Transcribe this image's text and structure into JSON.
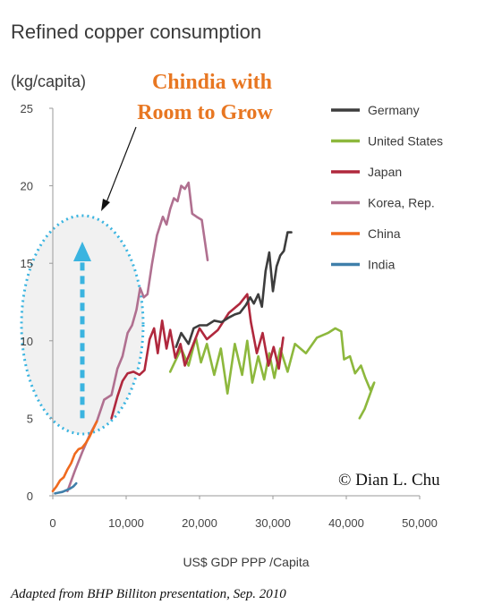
{
  "chart_data": {
    "type": "line",
    "title": "Refined copper consumption",
    "ylabel": "(kg/capita)",
    "xlabel": "US$ GDP PPP /Capita",
    "xlim": [
      0,
      50000
    ],
    "ylim": [
      0,
      25
    ],
    "xticks": [
      0,
      10000,
      20000,
      30000,
      40000,
      50000
    ],
    "xtick_labels": [
      "0",
      "10,000",
      "20,000",
      "30,000",
      "40,000",
      "50,000"
    ],
    "yticks": [
      0,
      5,
      10,
      15,
      20,
      25
    ],
    "ytick_labels": [
      "0",
      "5",
      "10",
      "15",
      "20",
      "25"
    ],
    "grid": false,
    "legend_position": "right",
    "series": [
      {
        "name": "Germany",
        "color": "#3d3d3d",
        "x": [
          16800,
          17500,
          18500,
          19200,
          20000,
          21000,
          22000,
          23000,
          24000,
          24800,
          25500,
          26300,
          26900,
          27400,
          28000,
          28500,
          29000,
          29500,
          30000,
          30500,
          31000,
          31500,
          32000,
          32500
        ],
        "y": [
          9.6,
          10.5,
          9.8,
          10.8,
          11.0,
          11.0,
          11.3,
          11.2,
          11.5,
          11.7,
          11.8,
          12.3,
          12.8,
          12.4,
          13.0,
          12.2,
          14.5,
          15.7,
          13.2,
          14.8,
          15.5,
          15.8,
          17.0,
          17.0
        ]
      },
      {
        "name": "United States",
        "color": "#8db83d",
        "x": [
          16000,
          17500,
          18500,
          19500,
          20200,
          21000,
          22000,
          22900,
          23800,
          24800,
          25800,
          26500,
          27200,
          28000,
          28800,
          29500,
          30200,
          31000,
          32000,
          33000,
          34500,
          36000,
          37500,
          38500,
          39300,
          39700,
          40500,
          41200,
          42000,
          42600,
          43300,
          43800,
          42500,
          41800
        ],
        "y": [
          8.0,
          9.5,
          8.4,
          10.2,
          8.6,
          9.8,
          7.8,
          9.5,
          6.6,
          9.8,
          7.8,
          10.0,
          7.3,
          9.0,
          7.5,
          9.2,
          7.6,
          9.5,
          8.0,
          9.8,
          9.2,
          10.2,
          10.5,
          10.8,
          10.6,
          8.8,
          9.0,
          7.9,
          8.4,
          7.6,
          6.8,
          7.3,
          5.6,
          5.0
        ]
      },
      {
        "name": "Japan",
        "color": "#b0283d",
        "x": [
          8000,
          8800,
          9500,
          10200,
          11000,
          11800,
          12500,
          13200,
          13800,
          14300,
          14900,
          15500,
          16000,
          16700,
          17400,
          18000,
          19000,
          20000,
          21000,
          22500,
          24000,
          25500,
          26500,
          27000,
          27800,
          28600,
          29400,
          30100,
          30800,
          31400
        ],
        "y": [
          5.0,
          6.4,
          7.4,
          7.9,
          8.0,
          7.8,
          8.1,
          10.1,
          10.8,
          9.2,
          11.3,
          9.5,
          10.7,
          8.9,
          9.8,
          8.4,
          9.6,
          10.8,
          10.1,
          10.7,
          11.8,
          12.4,
          13.0,
          11.2,
          9.2,
          10.5,
          8.4,
          9.6,
          8.2,
          10.2
        ]
      },
      {
        "name": "Korea, Rep.",
        "color": "#b07090",
        "x": [
          2000,
          3000,
          4000,
          5000,
          6000,
          7000,
          8000,
          8800,
          9500,
          10200,
          10800,
          11400,
          11900,
          12400,
          12900,
          13500,
          14200,
          15000,
          15500,
          16000,
          16500,
          17000,
          17500,
          18000,
          18500,
          19000,
          19600,
          20300,
          21100
        ],
        "y": [
          0.3,
          1.6,
          2.8,
          3.9,
          4.8,
          6.2,
          6.5,
          8.2,
          9.0,
          10.5,
          11.0,
          12.0,
          13.4,
          12.8,
          13.0,
          14.9,
          16.8,
          18.0,
          17.5,
          18.5,
          19.2,
          19.0,
          20.0,
          19.8,
          20.2,
          18.2,
          18.0,
          17.8,
          15.2
        ]
      },
      {
        "name": "China",
        "color": "#f06a1e",
        "x": [
          0,
          500,
          1000,
          1500,
          2000,
          2500,
          3000,
          3500,
          4000,
          4500,
          5000,
          5500,
          6000
        ],
        "y": [
          0.3,
          0.6,
          1.0,
          1.2,
          1.7,
          2.1,
          2.7,
          3.0,
          3.1,
          3.4,
          3.8,
          4.3,
          4.8
        ]
      },
      {
        "name": "India",
        "color": "#3f7faa",
        "x": [
          300,
          800,
          1300,
          1800,
          2300,
          2800,
          3200
        ],
        "y": [
          0.15,
          0.2,
          0.25,
          0.35,
          0.45,
          0.6,
          0.8
        ]
      }
    ],
    "annotations": {
      "callout_line1": "Chindia with",
      "callout_line2": "Room to Grow",
      "copyright": "© Dian L. Chu",
      "source": "Adapted from BHP Billiton presentation, Sep. 2010"
    }
  },
  "colors": {
    "axis": "#9a9a9a",
    "callout_text": "#e87722",
    "highlight_outline": "#3ab4e0",
    "highlight_fill": "#f1f1f1"
  },
  "highlight": {
    "description": "dotted ellipse with upward arrow over low-income region",
    "arrow_from_y": 5,
    "arrow_to_y": 16
  }
}
